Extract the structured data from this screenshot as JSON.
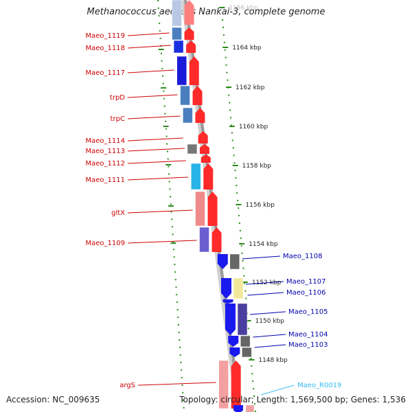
{
  "title": "Methanococcus aeolicus Nankai-3, complete genome",
  "accession_text": "Accession: NC_009635",
  "summary_text": "Topology: circular; Length: 1,569,500 bp; Genes: 1,536",
  "colors": {
    "forward_label": "#cc0000",
    "reverse_label": "#0000aa",
    "rna_label": "#33bbee",
    "ruler": "#2a8a1a",
    "backbone": "#999999"
  },
  "ruler_ticks": [
    "1166 kbp",
    "1164 kbp",
    "1162 kbp",
    "1160 kbp",
    "1158 kbp",
    "1156 kbp",
    "1154 kbp",
    "1152 kbp",
    "1150 kbp",
    "1148 kbp"
  ],
  "forward_genes": [
    "Maeo_1119",
    "Maeo_1118",
    "Maeo_1117",
    "trpD",
    "trpC",
    "Maeo_1114",
    "Maeo_1113",
    "Maeo_1112",
    "Maeo_1111",
    "gltX",
    "Maeo_1109",
    "argS"
  ],
  "reverse_genes": [
    "Maeo_1108",
    "Maeo_1107",
    "Maeo_1106",
    "Maeo_1105",
    "Maeo_1104",
    "Maeo_1103"
  ],
  "rna_genes": [
    "Maeo_R0019"
  ]
}
